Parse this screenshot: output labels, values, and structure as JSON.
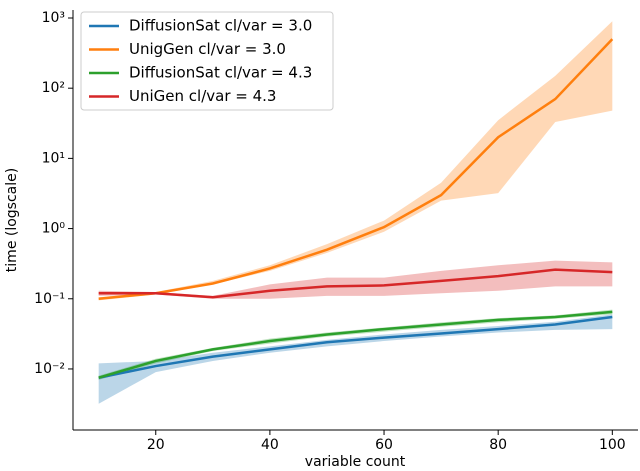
{
  "chart_data": {
    "type": "line",
    "x_label": "variable count",
    "y_label": "time (logscale)",
    "x": [
      10,
      20,
      30,
      40,
      50,
      60,
      70,
      80,
      90,
      100
    ],
    "series": [
      {
        "name": "DiffusionSat cl/var = 3.0",
        "color": "#1f77b4",
        "values": [
          0.0075,
          0.011,
          0.015,
          0.019,
          0.024,
          0.028,
          0.032,
          0.037,
          0.043,
          0.055
        ],
        "lower": [
          0.0032,
          0.009,
          0.013,
          0.017,
          0.021,
          0.025,
          0.029,
          0.033,
          0.036,
          0.037
        ],
        "upper": [
          0.012,
          0.013,
          0.017,
          0.021,
          0.026,
          0.031,
          0.036,
          0.041,
          0.047,
          0.06
        ]
      },
      {
        "name": "UnigGen cl/var = 3.0",
        "color": "#ff7f0e",
        "values": [
          0.1,
          0.12,
          0.165,
          0.27,
          0.5,
          1.05,
          3,
          20,
          70,
          500
        ],
        "lower": [
          0.095,
          0.115,
          0.16,
          0.25,
          0.45,
          0.9,
          2.5,
          3.2,
          33,
          48
        ],
        "upper": [
          0.105,
          0.125,
          0.18,
          0.3,
          0.6,
          1.3,
          4.5,
          35,
          150,
          900
        ]
      },
      {
        "name": "DiffusionSat cl/var = 4.3",
        "color": "#2ca02c",
        "values": [
          0.0075,
          0.013,
          0.019,
          0.025,
          0.031,
          0.037,
          0.043,
          0.05,
          0.055,
          0.065
        ],
        "lower": [
          0.007,
          0.012,
          0.018,
          0.023,
          0.029,
          0.034,
          0.04,
          0.046,
          0.052,
          0.06
        ],
        "upper": [
          0.008,
          0.014,
          0.02,
          0.027,
          0.033,
          0.039,
          0.046,
          0.053,
          0.058,
          0.07
        ]
      },
      {
        "name": "UniGen cl/var = 4.3",
        "color": "#d62728",
        "values": [
          0.12,
          0.12,
          0.105,
          0.13,
          0.15,
          0.155,
          0.18,
          0.21,
          0.26,
          0.24
        ],
        "lower": [
          0.11,
          0.115,
          0.1,
          0.1,
          0.11,
          0.11,
          0.12,
          0.13,
          0.15,
          0.15
        ],
        "upper": [
          0.13,
          0.125,
          0.11,
          0.16,
          0.2,
          0.2,
          0.25,
          0.3,
          0.35,
          0.33
        ]
      }
    ],
    "xlim": [
      5.5,
      104.5
    ],
    "xticks": [
      20,
      40,
      60,
      80,
      100
    ],
    "ylim": [
      0.00135,
      1300
    ],
    "log_y": true,
    "yticks": [
      {
        "value": 0.01,
        "label": "10⁻²"
      },
      {
        "value": 0.1,
        "label": "10⁻¹"
      },
      {
        "value": 1,
        "label": "10⁰"
      },
      {
        "value": 10,
        "label": "10¹"
      },
      {
        "value": 100,
        "label": "10²"
      },
      {
        "value": 1000,
        "label": "10³"
      }
    ],
    "legend": "upper left",
    "band_opacity": 0.3
  }
}
